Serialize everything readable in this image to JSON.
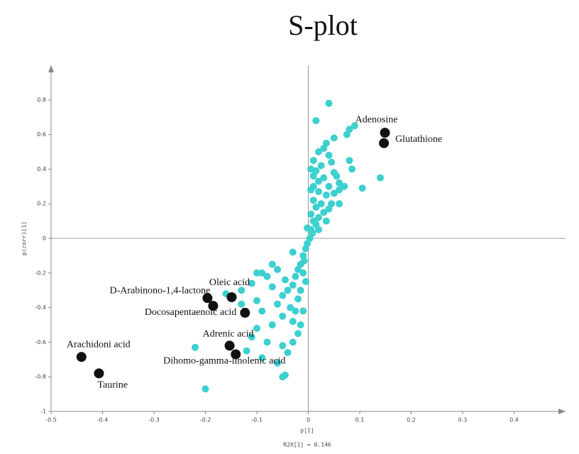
{
  "chart_data": {
    "type": "scatter",
    "title": "S-plot",
    "x_label": "p[1]",
    "y_label": "p(corr)[1]",
    "subtitle": "R2X[1] = 0.146",
    "xlim": [
      -0.5,
      0.5
    ],
    "ylim": [
      -1,
      1
    ],
    "xticks": [
      -0.5,
      -0.4,
      -0.3,
      -0.2,
      -0.1,
      0,
      0.1,
      0.2,
      0.3,
      0.4
    ],
    "yticks": [
      -1,
      -0.8,
      -0.6,
      -0.4,
      -0.2,
      0,
      0.2,
      0.4,
      0.6,
      0.8
    ],
    "grid": false,
    "series": [
      {
        "color": "#3cd0cf",
        "x": [
          0.04,
          0.015,
          0.08,
          0.09,
          0.075,
          0.05,
          0.035,
          0.03,
          0.02,
          0.04,
          0.01,
          0.025,
          0.005,
          0.015,
          0.08,
          0.085,
          0.14,
          0.105,
          0.05,
          0.03,
          0.06,
          0.07,
          0.04,
          0.02,
          0.01,
          0.005,
          0.02,
          0.035,
          0.05,
          0.06,
          0.045,
          0.025,
          0.01,
          0.015,
          0.03,
          0.02,
          0.01,
          0.005,
          0.015,
          0.005,
          0.008,
          0.003,
          -0.002,
          0.02,
          0.035,
          0.04,
          0.06,
          0.055,
          0.045,
          0.01,
          -0.002,
          -0.005,
          -0.01,
          -0.008,
          -0.015,
          -0.02,
          -0.01,
          -0.025,
          -0.005,
          -0.03,
          -0.015,
          -0.04,
          -0.02,
          -0.05,
          -0.035,
          -0.01,
          -0.06,
          -0.07,
          -0.08,
          -0.06,
          -0.03,
          -0.09,
          -0.1,
          -0.11,
          -0.13,
          -0.16,
          -0.13,
          -0.1,
          -0.09,
          -0.05,
          -0.03,
          -0.07,
          -0.02,
          -0.1,
          -0.11,
          -0.08,
          -0.05,
          -0.04,
          -0.12,
          -0.09,
          -0.06,
          -0.05,
          -0.045,
          -0.22,
          -0.2,
          -0.03,
          -0.015,
          -0.025,
          -0.045,
          -0.07
        ],
        "y": [
          0.78,
          0.68,
          0.63,
          0.65,
          0.6,
          0.58,
          0.55,
          0.52,
          0.5,
          0.48,
          0.45,
          0.42,
          0.4,
          0.39,
          0.45,
          0.4,
          0.35,
          0.29,
          0.38,
          0.35,
          0.32,
          0.3,
          0.3,
          0.33,
          0.3,
          0.28,
          0.27,
          0.25,
          0.26,
          0.28,
          0.2,
          0.2,
          0.22,
          0.18,
          0.15,
          0.12,
          0.1,
          0.14,
          0.08,
          0.05,
          0.03,
          0.0,
          0.06,
          0.05,
          0.1,
          0.17,
          0.2,
          0.36,
          0.44,
          0.36,
          -0.03,
          -0.06,
          -0.1,
          -0.13,
          -0.15,
          -0.18,
          -0.2,
          -0.22,
          -0.25,
          -0.27,
          -0.3,
          -0.3,
          -0.35,
          -0.33,
          -0.4,
          -0.42,
          -0.38,
          -0.28,
          -0.22,
          -0.18,
          -0.08,
          -0.2,
          -0.2,
          -0.26,
          -0.3,
          -0.32,
          -0.38,
          -0.36,
          -0.42,
          -0.45,
          -0.48,
          -0.5,
          -0.55,
          -0.52,
          -0.57,
          -0.6,
          -0.62,
          -0.66,
          -0.65,
          -0.69,
          -0.72,
          -0.8,
          -0.79,
          -0.63,
          -0.87,
          -0.6,
          -0.5,
          -0.42,
          -0.24,
          -0.15
        ]
      },
      {
        "color": "#111111",
        "x": [
          0.149,
          0.147,
          -0.149,
          -0.196,
          -0.185,
          -0.123,
          -0.153,
          -0.141,
          -0.441,
          -0.407
        ],
        "y": [
          0.61,
          0.55,
          -0.34,
          -0.345,
          -0.39,
          -0.43,
          -0.62,
          -0.67,
          -0.685,
          -0.78
        ],
        "labels": [
          "Adenosine",
          "Glutathione",
          "Oleic acid",
          "D-Arabinono-1,4-lactone",
          null,
          "Docosapentaenoic acid",
          "Adrenic acid",
          "Dihomo-gamma-linolenic acid",
          "Arachidoni acid",
          "Taurine"
        ]
      }
    ]
  }
}
